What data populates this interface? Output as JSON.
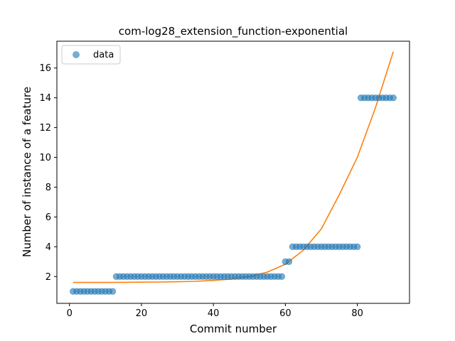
{
  "chart_data": {
    "type": "scatter",
    "title": "com-log28_extension_function-exponential",
    "xlabel": "Commit number",
    "ylabel": "Number of instance of a feature",
    "xlim": [
      -3.5,
      94.5
    ],
    "ylim": [
      0.2,
      17.8
    ],
    "xticks": [
      0,
      20,
      40,
      60,
      80
    ],
    "yticks": [
      2,
      4,
      6,
      8,
      10,
      12,
      14,
      16
    ],
    "grid": false,
    "legend_position": "top-left",
    "series": [
      {
        "name": "data",
        "kind": "scatter",
        "color": "#1f77b4",
        "x": [
          1,
          2,
          3,
          4,
          5,
          6,
          7,
          8,
          9,
          10,
          11,
          12,
          13,
          14,
          15,
          16,
          17,
          18,
          19,
          20,
          21,
          22,
          23,
          24,
          25,
          26,
          27,
          28,
          29,
          30,
          31,
          32,
          33,
          34,
          35,
          36,
          37,
          38,
          39,
          40,
          41,
          42,
          43,
          44,
          45,
          46,
          47,
          48,
          49,
          50,
          51,
          52,
          53,
          54,
          55,
          56,
          57,
          58,
          59,
          60,
          61,
          62,
          63,
          64,
          65,
          66,
          67,
          68,
          69,
          70,
          71,
          72,
          73,
          74,
          75,
          76,
          77,
          78,
          79,
          80,
          81,
          82,
          83,
          84,
          85,
          86,
          87,
          88,
          89,
          90
        ],
        "y": [
          1,
          1,
          1,
          1,
          1,
          1,
          1,
          1,
          1,
          1,
          1,
          1,
          2,
          2,
          2,
          2,
          2,
          2,
          2,
          2,
          2,
          2,
          2,
          2,
          2,
          2,
          2,
          2,
          2,
          2,
          2,
          2,
          2,
          2,
          2,
          2,
          2,
          2,
          2,
          2,
          2,
          2,
          2,
          2,
          2,
          2,
          2,
          2,
          2,
          2,
          2,
          2,
          2,
          2,
          2,
          2,
          2,
          2,
          2,
          3,
          3,
          4,
          4,
          4,
          4,
          4,
          4,
          4,
          4,
          4,
          4,
          4,
          4,
          4,
          4,
          4,
          4,
          4,
          4,
          4,
          14,
          14,
          14,
          14,
          14,
          14,
          14,
          14,
          14,
          14
        ]
      },
      {
        "name": "",
        "kind": "line",
        "color": "#ff7f0e",
        "x": [
          1,
          5,
          10,
          15,
          20,
          25,
          30,
          35,
          40,
          45,
          50,
          55,
          60,
          65,
          70,
          75,
          80,
          85,
          90
        ],
        "y": [
          1.6,
          1.6,
          1.6,
          1.61,
          1.62,
          1.63,
          1.65,
          1.68,
          1.74,
          1.83,
          2.0,
          2.3,
          2.83,
          3.77,
          5.2,
          7.5,
          10.0,
          13.3,
          17.1
        ]
      }
    ]
  }
}
